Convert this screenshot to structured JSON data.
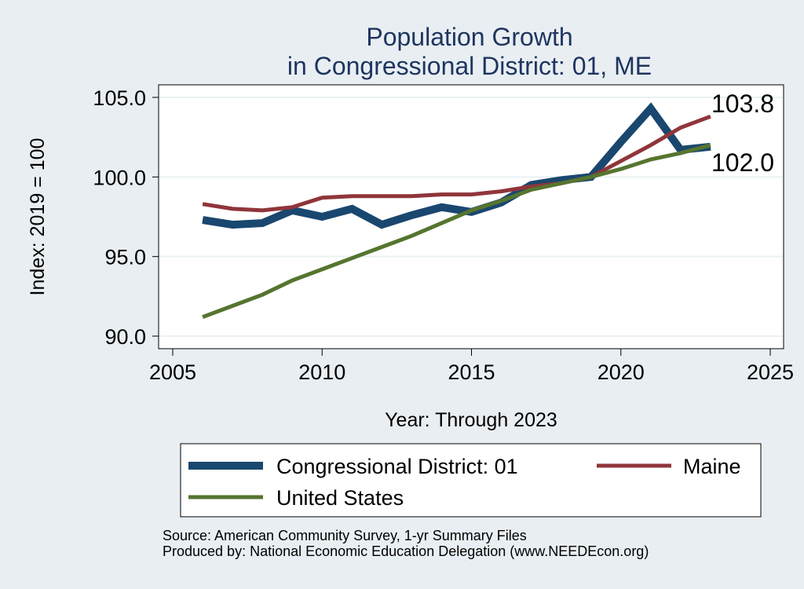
{
  "chart_data": {
    "type": "line",
    "title": "Population Growth",
    "subtitle": "in Congressional District: 01, ME",
    "xlabel": "Year: Through 2023",
    "ylabel": "Index: 2019 = 100",
    "xlim": [
      2005,
      2025
    ],
    "ylim": [
      90,
      105
    ],
    "x_ticks": [
      "2005",
      "2010",
      "2015",
      "2020",
      "2025"
    ],
    "y_ticks": [
      "90.0",
      "95.0",
      "100.0",
      "105.0"
    ],
    "grid": true,
    "legend_position": "bottom",
    "x": [
      2006,
      2007,
      2008,
      2009,
      2010,
      2011,
      2012,
      2013,
      2014,
      2015,
      2016,
      2017,
      2018,
      2019,
      2020,
      2021,
      2022,
      2023
    ],
    "series": [
      {
        "name": "Congressional District: 01",
        "color": "#1a476f",
        "values": [
          97.3,
          97.0,
          97.1,
          97.9,
          97.5,
          98.0,
          97.0,
          97.6,
          98.1,
          97.8,
          98.4,
          99.5,
          99.8,
          100.0,
          102.2,
          104.3,
          101.7,
          101.9
        ]
      },
      {
        "name": "Maine",
        "color": "#90353b",
        "values": [
          98.3,
          98.0,
          97.9,
          98.1,
          98.7,
          98.8,
          98.8,
          98.8,
          98.9,
          98.9,
          99.1,
          99.4,
          99.6,
          100.0,
          101.0,
          102.0,
          103.1,
          103.8
        ]
      },
      {
        "name": "United States",
        "color": "#55752f",
        "values": [
          91.2,
          91.9,
          92.6,
          93.5,
          94.2,
          94.9,
          95.6,
          96.3,
          97.1,
          97.9,
          98.5,
          99.2,
          99.6,
          100.0,
          100.5,
          101.1,
          101.5,
          102.0
        ]
      }
    ],
    "end_labels": [
      "103.8",
      "102.0"
    ],
    "source_lines": [
      "Source: American Community Survey, 1-yr Summary Files",
      "Produced by: National Economic Education Delegation (www.NEEDEcon.org)"
    ]
  }
}
